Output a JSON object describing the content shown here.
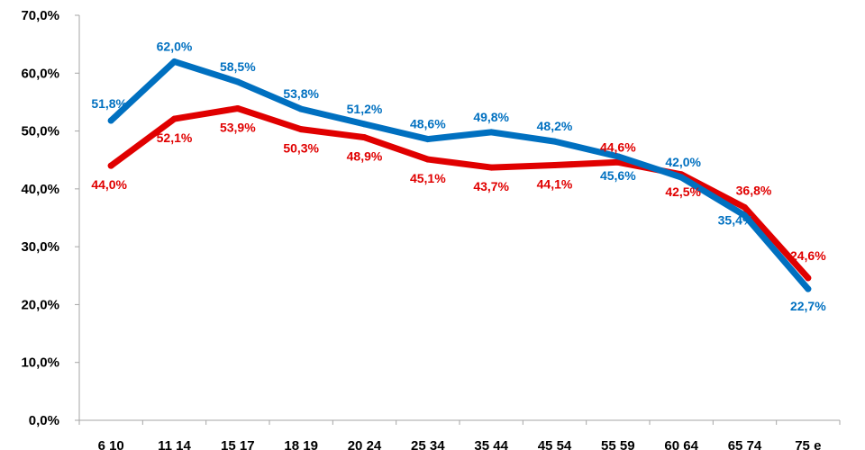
{
  "chart_data": {
    "type": "line",
    "categories": [
      "6 10",
      "11 14",
      "15 17",
      "18 19",
      "20 24",
      "25 34",
      "35 44",
      "45 54",
      "55 59",
      "60 64",
      "65 74",
      "75 e"
    ],
    "series": [
      {
        "color": "#0070C0",
        "values": [
          51.8,
          62.0,
          58.5,
          53.8,
          51.2,
          48.6,
          49.8,
          48.2,
          45.6,
          42.0,
          35.4,
          22.7
        ],
        "labels": [
          "51,8%",
          "62,0%",
          "58,5%",
          "53,8%",
          "51,2%",
          "48,6%",
          "49,8%",
          "48,2%",
          "45,6%",
          "42,0%",
          "35,4%",
          "22,7%"
        ]
      },
      {
        "color": "#E00000",
        "values": [
          44.0,
          52.1,
          53.9,
          50.3,
          48.9,
          45.1,
          43.7,
          44.1,
          44.6,
          42.5,
          36.8,
          24.6
        ],
        "labels": [
          "44,0%",
          "52,1%",
          "53,9%",
          "50,3%",
          "48,9%",
          "45,1%",
          "43,7%",
          "44,1%",
          "44,6%",
          "42,5%",
          "36,8%",
          "24,6%"
        ]
      }
    ],
    "ylim": [
      0,
      70
    ],
    "yticks": [
      0,
      10,
      20,
      30,
      40,
      50,
      60,
      70
    ],
    "ytick_labels": [
      "0,0%",
      "10,0%",
      "20,0%",
      "30,0%",
      "40,0%",
      "50,0%",
      "60,0%",
      "70,0%"
    ],
    "grid": false,
    "legend": "none"
  }
}
